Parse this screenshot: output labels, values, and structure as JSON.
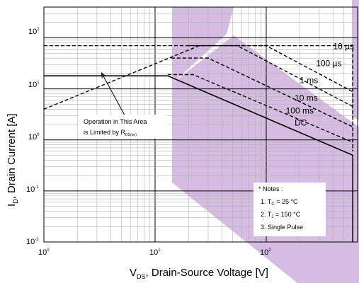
{
  "chart_data": {
    "type": "line",
    "xscale": "log",
    "yscale": "log",
    "xlim": [
      1,
      700
    ],
    "ylim": [
      0.01,
      400
    ],
    "grid": true,
    "x_ticks": [
      {
        "base": "10",
        "exp": "0"
      },
      {
        "base": "10",
        "exp": "1"
      },
      {
        "base": "10",
        "exp": "2"
      }
    ],
    "y_ticks": [
      {
        "base": "10",
        "exp": "-2"
      },
      {
        "base": "10",
        "exp": "-1"
      },
      {
        "base": "10",
        "exp": "0"
      },
      {
        "base": "10",
        "exp": "1"
      },
      {
        "base": "10",
        "exp": "2"
      }
    ],
    "xlabel": {
      "main": "V",
      "sub": "DS",
      "rest": ", Drain-Source Voltage [V]"
    },
    "ylabel": {
      "main": "I",
      "sub": "D",
      "rest": ", Drain Current [A]"
    },
    "series": [
      {
        "name": "10 µs",
        "style": "dashed",
        "x": [
          1,
          600,
          600
        ],
        "y": [
          70,
          70,
          0.6
        ]
      },
      {
        "name": "100 µs",
        "style": "dashed",
        "x": [
          1,
          25,
          100,
          600,
          600
        ],
        "y": [
          4,
          70,
          70,
          8.8,
          0.6
        ]
      },
      {
        "name": "1 ms",
        "style": "dashed",
        "x": [
          20,
          55,
          600
        ],
        "y": [
          70,
          70,
          4.5
        ]
      },
      {
        "name": "10 ms",
        "style": "dashed",
        "x": [
          14,
          30,
          600
        ],
        "y": [
          40,
          40,
          1.8
        ]
      },
      {
        "name": "100 ms",
        "style": "dashed",
        "x": [
          13,
          22,
          600
        ],
        "y": [
          19,
          19,
          0.9
        ]
      },
      {
        "name": "DC",
        "style": "solid",
        "x": [
          1,
          13,
          600,
          600
        ],
        "y": [
          18,
          18,
          0.5,
          0.01
        ]
      }
    ],
    "curve_labels": [
      {
        "text": "10 µs",
        "x": 400,
        "y": 60
      },
      {
        "text": "100 µs",
        "x": 280,
        "y": 28
      },
      {
        "text": "1 ms",
        "x": 200,
        "y": 13
      },
      {
        "text": "10 ms",
        "x": 180,
        "y": 5.8
      },
      {
        "text": "100 ms",
        "x": 150,
        "y": 3.3
      },
      {
        "text": "DC",
        "x": 180,
        "y": 1.9
      }
    ],
    "annotation": {
      "line1": "Operation in This Area",
      "line2": "is Limited by R",
      "line2_sub": "DS(on)"
    },
    "notes": {
      "title": "* Notes :",
      "items": [
        {
          "prefix": "1. T",
          "sub": "C",
          "rest": " = 25 °C"
        },
        {
          "prefix": "2. T",
          "sub": "J",
          "rest": " = 150 °C"
        },
        {
          "prefix": "3. Single Pulse",
          "sub": "",
          "rest": ""
        }
      ]
    },
    "overlay_color": "#c8a6d8"
  }
}
